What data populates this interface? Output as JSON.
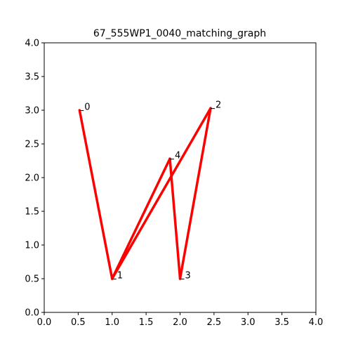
{
  "chart_data": {
    "type": "line",
    "title": "67_555WP1_0040_matching_graph",
    "xlabel": "",
    "ylabel": "",
    "xlim": [
      0,
      4
    ],
    "ylim": [
      0,
      4
    ],
    "xticks": [
      "0.0",
      "0.5",
      "1.0",
      "1.5",
      "2.0",
      "2.5",
      "3.0",
      "3.5",
      "4.0"
    ],
    "yticks": [
      "0.0",
      "0.5",
      "1.0",
      "1.5",
      "2.0",
      "2.5",
      "3.0",
      "3.5",
      "4.0"
    ],
    "grid": false,
    "line_color": "#ff0000",
    "nodes": [
      {
        "label": "0",
        "x": 0.52,
        "y": 3.0
      },
      {
        "label": "1",
        "x": 1.0,
        "y": 0.5
      },
      {
        "label": "2",
        "x": 2.45,
        "y": 3.03
      },
      {
        "label": "3",
        "x": 2.0,
        "y": 0.5
      },
      {
        "label": "4",
        "x": 1.85,
        "y": 2.28
      }
    ],
    "edges": [
      [
        0,
        1
      ],
      [
        1,
        4
      ],
      [
        1,
        2
      ],
      [
        4,
        3
      ],
      [
        3,
        2
      ]
    ]
  }
}
